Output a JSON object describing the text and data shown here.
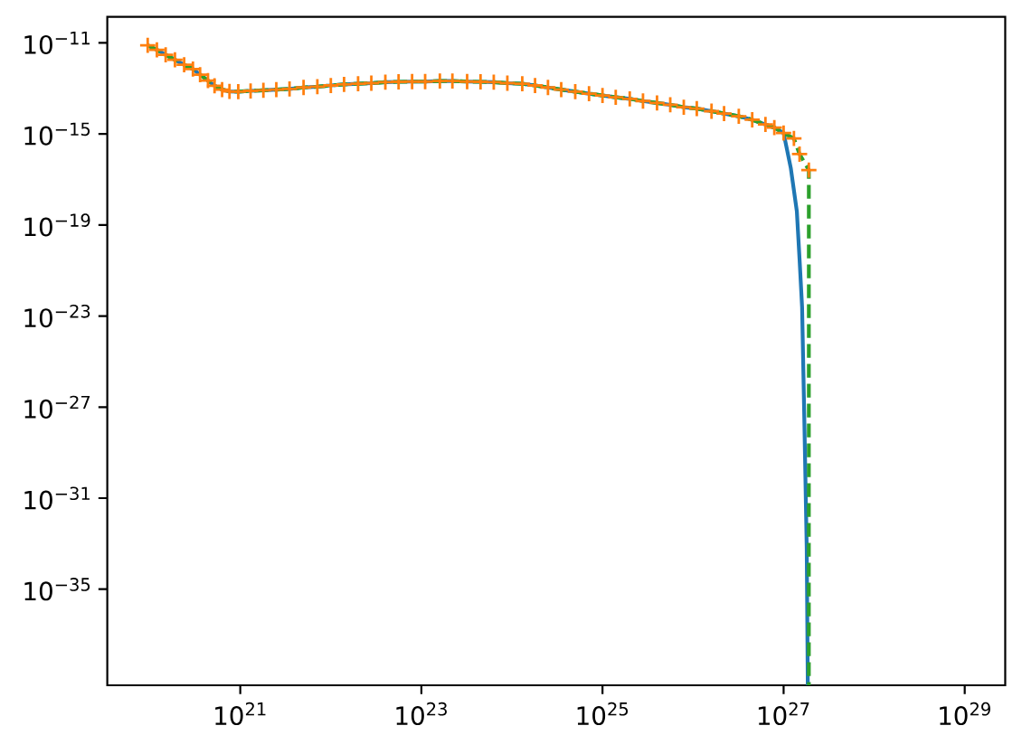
{
  "chart_data": {
    "type": "line",
    "log": "xy",
    "xlim": [
      3.4e+19,
      2.8e+29
    ],
    "ylim": [
      6e-40,
      1.4e-10
    ],
    "xticks": [
      {
        "value": 1e+21,
        "label": "10$^{21}$"
      },
      {
        "value": 1e+23,
        "label": "10$^{23}$"
      },
      {
        "value": 1e+25,
        "label": "10$^{25}$"
      },
      {
        "value": 1e+27,
        "label": "10$^{27}$"
      },
      {
        "value": 1e+29,
        "label": "10$^{29}$"
      }
    ],
    "yticks": [
      {
        "value": 1e-11,
        "label": "10$^{−11}$"
      },
      {
        "value": 1e-15,
        "label": "10$^{−15}$"
      },
      {
        "value": 1e-19,
        "label": "10$^{−19}$"
      },
      {
        "value": 1e-23,
        "label": "10$^{−23}$"
      },
      {
        "value": 1e-27,
        "label": "10$^{−27}$"
      },
      {
        "value": 1e-31,
        "label": "10$^{−31}$"
      },
      {
        "value": 1e-35,
        "label": "10$^{−35}$"
      }
    ],
    "series": [
      {
        "color": "#1f77b4",
        "line_style": "solid",
        "x": [
          9.5e+19,
          1.2e+20,
          1.5e+20,
          1.9e+20,
          2.4e+20,
          3e+20,
          3.6e+20,
          4.4e+20,
          5.2e+20,
          6.3e+20,
          7.6e+20,
          9.5e+20,
          1.3e+21,
          1.8e+21,
          2.5e+21,
          3.5e+21,
          5e+21,
          7.1e+21,
          1e+22,
          1.4e+22,
          2e+22,
          2.8e+22,
          4e+22,
          5.6e+22,
          7.9e+22,
          1.1e+23,
          1.6e+23,
          2.2e+23,
          3.2e+23,
          4.5e+23,
          6.3e+23,
          8.9e+23,
          1.3e+24,
          1.8e+24,
          2.5e+24,
          3.5e+24,
          5e+24,
          7.1e+24,
          1e+25,
          1.4e+25,
          2e+25,
          2.8e+25,
          4e+25,
          5.6e+25,
          7.9e+25,
          1.1e+26,
          1.6e+26,
          2.2e+26,
          3.2e+26,
          4.5e+26,
          6.3e+26,
          7.9e+26,
          1e+27,
          1.2e+27,
          1.4e+27,
          1.5e+27,
          1.6e+27,
          1.7e+27,
          1.8e+27,
          1.85e+27
        ],
        "values": [
          7.9e-12,
          5e-12,
          3e-12,
          1.8e-12,
          1.1e-12,
          7.1e-13,
          4e-13,
          2.2e-13,
          1.3e-13,
          8.9e-14,
          7.4e-14,
          7.2e-14,
          7.8e-14,
          8.3e-14,
          8.9e-14,
          9.5e-14,
          1.1e-13,
          1.2e-13,
          1.35e-13,
          1.5e-13,
          1.6e-13,
          1.7e-13,
          1.9e-13,
          1.95e-13,
          2e-13,
          2e-13,
          2.1e-13,
          2.1e-13,
          2e-13,
          1.95e-13,
          1.9e-13,
          1.7e-13,
          1.6e-13,
          1.35e-13,
          1.1e-13,
          8.9e-14,
          7.2e-14,
          5.9e-14,
          4.9e-14,
          4.1e-14,
          3.5e-14,
          2.8e-14,
          2.3e-14,
          1.9e-14,
          1.5e-14,
          1.3e-14,
          1e-14,
          7.9e-15,
          6e-15,
          4.2e-15,
          2.6e-15,
          1.9e-15,
          1.1e-15,
          3.2e-17,
          4e-19,
          3.2e-21,
          2.5e-23,
          1.3e-28,
          6.3e-34,
          6e-40
        ]
      },
      {
        "type": "scatter",
        "color": "#ff7f0e",
        "marker": "cross",
        "x": [
          9.5e+19,
          1.2e+20,
          1.5e+20,
          1.9e+20,
          2.4e+20,
          3e+20,
          3.6e+20,
          4.4e+20,
          5.2e+20,
          6.3e+20,
          7.6e+20,
          9.5e+20,
          1.3e+21,
          1.8e+21,
          2.5e+21,
          3.5e+21,
          5e+21,
          7.1e+21,
          1e+22,
          1.4e+22,
          2e+22,
          2.8e+22,
          4e+22,
          5.6e+22,
          7.9e+22,
          1.1e+23,
          1.6e+23,
          2.2e+23,
          3.2e+23,
          4.5e+23,
          6.3e+23,
          8.9e+23,
          1.3e+24,
          1.8e+24,
          2.5e+24,
          3.5e+24,
          5e+24,
          7.1e+24,
          1e+25,
          1.4e+25,
          2e+25,
          2.8e+25,
          4e+25,
          5.6e+25,
          7.9e+25,
          1.1e+26,
          1.6e+26,
          2.2e+26,
          3.2e+26,
          4.5e+26,
          6.3e+26,
          7.9e+26,
          1e+27,
          1.3e+27,
          1.5e+27,
          1.9e+27
        ],
        "values": [
          7.9e-12,
          5e-12,
          3e-12,
          1.8e-12,
          1.1e-12,
          7.1e-13,
          4e-13,
          2.2e-13,
          1.3e-13,
          8.9e-14,
          7.4e-14,
          7.2e-14,
          7.8e-14,
          8.3e-14,
          8.9e-14,
          9.5e-14,
          1.1e-13,
          1.2e-13,
          1.35e-13,
          1.5e-13,
          1.6e-13,
          1.7e-13,
          1.9e-13,
          1.95e-13,
          2e-13,
          2e-13,
          2.1e-13,
          2.1e-13,
          2e-13,
          1.95e-13,
          1.9e-13,
          1.7e-13,
          1.6e-13,
          1.35e-13,
          1.1e-13,
          8.9e-14,
          7.2e-14,
          5.9e-14,
          4.9e-14,
          4.1e-14,
          3.5e-14,
          2.8e-14,
          2.3e-14,
          1.9e-14,
          1.5e-14,
          1.3e-14,
          1e-14,
          7.9e-15,
          6e-15,
          4.2e-15,
          2.6e-15,
          1.9e-15,
          1.1e-15,
          6.3e-16,
          1.3e-16,
          2.6e-17
        ]
      },
      {
        "color": "#2ca02c",
        "line_style": "dashed",
        "x": [
          9.5e+19,
          1.2e+20,
          1.5e+20,
          1.9e+20,
          2.4e+20,
          3e+20,
          3.6e+20,
          4.4e+20,
          5.2e+20,
          6.3e+20,
          7.6e+20,
          9.5e+20,
          1.3e+21,
          1.8e+21,
          2.5e+21,
          3.5e+21,
          5e+21,
          7.1e+21,
          1e+22,
          1.4e+22,
          2e+22,
          2.8e+22,
          4e+22,
          5.6e+22,
          7.9e+22,
          1.1e+23,
          1.6e+23,
          2.2e+23,
          3.2e+23,
          4.5e+23,
          6.3e+23,
          8.9e+23,
          1.3e+24,
          1.8e+24,
          2.5e+24,
          3.5e+24,
          5e+24,
          7.1e+24,
          1e+25,
          1.4e+25,
          2e+25,
          2.8e+25,
          4e+25,
          5.6e+25,
          7.9e+25,
          1.1e+26,
          1.6e+26,
          2.2e+26,
          3.2e+26,
          4.5e+26,
          6.3e+26,
          7.9e+26,
          1e+27,
          1.3e+27,
          1.5e+27,
          1.9e+27,
          1.9e+27
        ],
        "values": [
          7.9e-12,
          5e-12,
          3e-12,
          1.8e-12,
          1.1e-12,
          7.1e-13,
          4e-13,
          2.2e-13,
          1.3e-13,
          8.9e-14,
          7.4e-14,
          7.2e-14,
          7.8e-14,
          8.3e-14,
          8.9e-14,
          9.5e-14,
          1.1e-13,
          1.2e-13,
          1.35e-13,
          1.5e-13,
          1.6e-13,
          1.7e-13,
          1.9e-13,
          1.95e-13,
          2e-13,
          2e-13,
          2.1e-13,
          2.1e-13,
          2e-13,
          1.95e-13,
          1.9e-13,
          1.7e-13,
          1.6e-13,
          1.35e-13,
          1.1e-13,
          8.9e-14,
          7.2e-14,
          5.9e-14,
          4.9e-14,
          4.1e-14,
          3.5e-14,
          2.8e-14,
          2.3e-14,
          1.9e-14,
          1.5e-14,
          1.3e-14,
          1e-14,
          7.9e-15,
          6e-15,
          4.2e-15,
          2.6e-15,
          1.9e-15,
          1.1e-15,
          6.3e-16,
          1.3e-16,
          2.6e-17,
          6e-40
        ]
      }
    ]
  }
}
